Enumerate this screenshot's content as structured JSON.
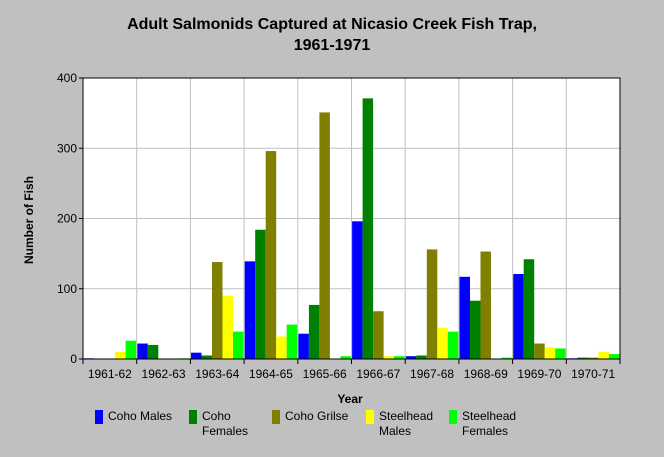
{
  "chart_data": {
    "type": "bar",
    "title": [
      "Adult Salmonids Captured at Nicasio Creek Fish Trap,",
      "1961-1971"
    ],
    "xlabel": "Year",
    "ylabel": "Number of Fish",
    "ylim": [
      0,
      400
    ],
    "yticks": [
      0,
      100,
      200,
      300,
      400
    ],
    "grid": true,
    "legend_position": "bottom",
    "categories": [
      "1961-62",
      "1962-63",
      "1963-64",
      "1964-65",
      "1965-66",
      "1966-67",
      "1967-68",
      "1968-69",
      "1969-70",
      "1970-71"
    ],
    "series": [
      {
        "name": "Coho Males",
        "color": "#0000ff",
        "values": [
          1,
          22,
          9,
          139,
          36,
          196,
          4,
          117,
          121,
          1
        ]
      },
      {
        "name": "Coho Females",
        "color": "#008000",
        "values": [
          0,
          20,
          5,
          184,
          77,
          371,
          5,
          83,
          142,
          2
        ]
      },
      {
        "name": "Coho Grilse",
        "color": "#808000",
        "values": [
          0,
          0,
          138,
          296,
          351,
          68,
          156,
          153,
          22,
          2
        ]
      },
      {
        "name": "Steelhead Males",
        "color": "#ffff00",
        "values": [
          10,
          0,
          90,
          32,
          0,
          4,
          44,
          0,
          17,
          10
        ]
      },
      {
        "name": "Steelhead Females",
        "color": "#00ff00",
        "values": [
          26,
          1,
          39,
          49,
          4,
          4,
          39,
          2,
          15,
          7
        ]
      }
    ]
  },
  "legend": [
    {
      "label_line1": "Coho Males",
      "label_line2": ""
    },
    {
      "label_line1": "Coho",
      "label_line2": "Females"
    },
    {
      "label_line1": "Coho Grilse",
      "label_line2": ""
    },
    {
      "label_line1": "Steelhead",
      "label_line2": "Males"
    },
    {
      "label_line1": "Steelhead",
      "label_line2": "Females"
    }
  ]
}
